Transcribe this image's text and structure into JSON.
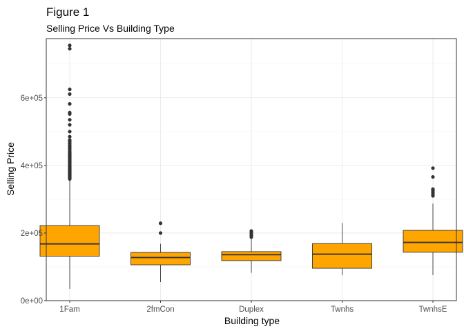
{
  "chart_data": {
    "type": "boxplot",
    "title": "Figure 1",
    "subtitle": "Selling Price Vs Building Type",
    "xlabel": "Building type",
    "ylabel": "Selling Price",
    "ylim": [
      0,
      775000
    ],
    "y_ticks": [
      {
        "value": 0,
        "label": "0e+00"
      },
      {
        "value": 200000,
        "label": "2e+05"
      },
      {
        "value": 400000,
        "label": "4e+05"
      },
      {
        "value": 600000,
        "label": "6e+05"
      }
    ],
    "grid": true,
    "box_color": "#FFA500",
    "line_color": "#333333",
    "categories": [
      "1Fam",
      "2fmCon",
      "Duplex",
      "Twnhs",
      "TwnhsE"
    ],
    "boxes": [
      {
        "category": "1Fam",
        "whisker_low": 35000,
        "q1": 131500,
        "median": 167900,
        "q3": 222000,
        "whisker_high": 357000,
        "outliers": [
          360000,
          362000,
          364000,
          366000,
          368000,
          370000,
          372000,
          374000,
          376000,
          378000,
          380000,
          382000,
          384000,
          386000,
          388000,
          390000,
          392000,
          394000,
          396000,
          398000,
          400000,
          403000,
          406000,
          409000,
          412000,
          415000,
          418000,
          421000,
          424000,
          427000,
          430000,
          433000,
          436000,
          440000,
          445000,
          450000,
          455000,
          460000,
          465000,
          470000,
          475000,
          485000,
          500000,
          520000,
          535000,
          552000,
          556000,
          582000,
          611000,
          625000,
          745000,
          755000
        ]
      },
      {
        "category": "2fmCon",
        "whisker_low": 55000,
        "q1": 106000,
        "median": 127500,
        "q3": 142500,
        "whisker_high": 168000,
        "outliers": [
          200000,
          228950
        ]
      },
      {
        "category": "Duplex",
        "whisker_low": 82000,
        "q1": 118500,
        "median": 135980,
        "q3": 145000,
        "whisker_high": 185000,
        "outliers": [
          188000,
          193000,
          198000,
          202000,
          206000
        ]
      },
      {
        "category": "Twnhs",
        "whisker_low": 75000,
        "q1": 95750,
        "median": 137500,
        "q3": 168750,
        "whisker_high": 230000,
        "outliers": []
      },
      {
        "category": "TwnhsE",
        "whisker_low": 75500,
        "q1": 143187,
        "median": 172200,
        "q3": 207950,
        "whisker_high": 287000,
        "outliers": [
          310000,
          315000,
          320000,
          325000,
          330000,
          366000,
          392000
        ]
      }
    ]
  }
}
